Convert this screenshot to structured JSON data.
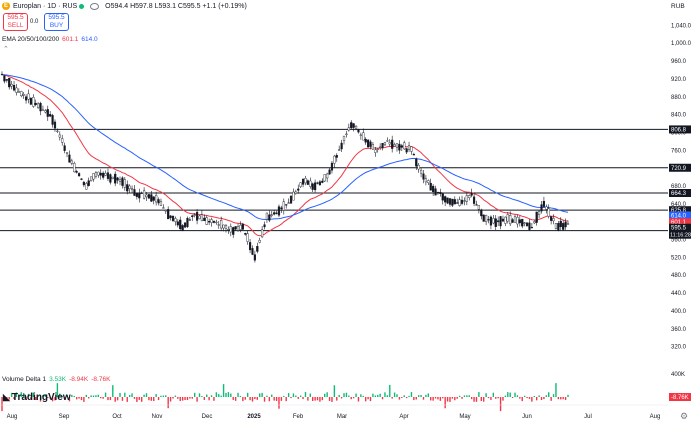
{
  "header": {
    "symbol": "Europlan · 1D · RUS",
    "logo_letter": "E",
    "ohlc": "O594.4  H597.8  L593.1  C595.5  +1.1 (+0.19%)",
    "sell_price": "595.5",
    "sell_label": "SELL",
    "spread": "0.0",
    "buy_price": "595.5",
    "buy_label": "BUY",
    "currency": "RUB"
  },
  "ema": {
    "label": "EMA 20/50/100/200",
    "value_fast": "601.1",
    "value_slow": "614.0"
  },
  "volume": {
    "label": "Volume Delta 1",
    "v1": "3.53K",
    "v2": "-8.94K",
    "v3": "-8.76K",
    "axis_label": "-8.76K",
    "axis_top": "400K"
  },
  "branding": {
    "name": "TradingView"
  },
  "axis": {
    "price_ticks": [
      "1,040.0",
      "1,000.0",
      "960.0",
      "920.0",
      "880.0",
      "840.0",
      "800.0",
      "760.0",
      "720.0",
      "680.0",
      "640.0",
      "600.0",
      "560.0",
      "520.0",
      "480.0",
      "440.0",
      "400.0",
      "360.0",
      "320.0"
    ],
    "time_ticks": [
      "Aug",
      "Sep",
      "Oct",
      "Nov",
      "Dec",
      "2025",
      "Feb",
      "Mar",
      "Apr",
      "May",
      "Jun",
      "Jul",
      "Aug"
    ]
  },
  "levels": [
    {
      "value": 806.8,
      "label": "806.8"
    },
    {
      "value": 720.9,
      "label": "720.9"
    },
    {
      "value": 664.3,
      "label": "664.3"
    },
    {
      "value": 625.8,
      "label": "625.8"
    },
    {
      "value": 580.0,
      "label": "580.0"
    }
  ],
  "price_tags": [
    {
      "value": 614.0,
      "label": "614.0",
      "color": "#2962ff"
    },
    {
      "value": 601.1,
      "label": "601.1",
      "color": "#f23645"
    },
    {
      "value": 595.5,
      "label": "595.5",
      "color": "#131722"
    }
  ],
  "countdown": "11:16:28",
  "colors": {
    "up": "#131722",
    "down": "#131722",
    "ema_fast": "#f23645",
    "ema_slow": "#2962ff",
    "vol_up": "#0dbc76",
    "vol_down": "#f23645"
  },
  "chart_data": {
    "type": "candlestick",
    "title": "Europlan · 1D · RUS",
    "ylim": [
      290,
      1070
    ],
    "close_series": [
      {
        "date": "2024-07-25",
        "close": 930
      },
      {
        "date": "2024-08-01",
        "close": 900
      },
      {
        "date": "2024-08-08",
        "close": 880
      },
      {
        "date": "2024-08-15",
        "close": 860
      },
      {
        "date": "2024-08-22",
        "close": 840
      },
      {
        "date": "2024-08-29",
        "close": 780
      },
      {
        "date": "2024-09-05",
        "close": 720
      },
      {
        "date": "2024-09-12",
        "close": 680
      },
      {
        "date": "2024-09-19",
        "close": 710
      },
      {
        "date": "2024-09-26",
        "close": 700
      },
      {
        "date": "2024-10-03",
        "close": 690
      },
      {
        "date": "2024-10-10",
        "close": 665
      },
      {
        "date": "2024-10-17",
        "close": 660
      },
      {
        "date": "2024-10-24",
        "close": 650
      },
      {
        "date": "2024-10-31",
        "close": 610
      },
      {
        "date": "2024-11-07",
        "close": 590
      },
      {
        "date": "2024-11-14",
        "close": 615
      },
      {
        "date": "2024-11-21",
        "close": 600
      },
      {
        "date": "2024-11-28",
        "close": 595
      },
      {
        "date": "2024-12-05",
        "close": 580
      },
      {
        "date": "2024-12-12",
        "close": 590
      },
      {
        "date": "2024-12-19",
        "close": 520
      },
      {
        "date": "2024-12-26",
        "close": 610
      },
      {
        "date": "2025-01-02",
        "close": 625
      },
      {
        "date": "2025-01-09",
        "close": 650
      },
      {
        "date": "2025-01-16",
        "close": 690
      },
      {
        "date": "2025-01-23",
        "close": 680
      },
      {
        "date": "2025-01-30",
        "close": 700
      },
      {
        "date": "2025-02-06",
        "close": 760
      },
      {
        "date": "2025-02-13",
        "close": 820
      },
      {
        "date": "2025-02-20",
        "close": 790
      },
      {
        "date": "2025-02-27",
        "close": 760
      },
      {
        "date": "2025-03-06",
        "close": 780
      },
      {
        "date": "2025-03-13",
        "close": 770
      },
      {
        "date": "2025-03-20",
        "close": 760
      },
      {
        "date": "2025-03-27",
        "close": 700
      },
      {
        "date": "2025-04-03",
        "close": 670
      },
      {
        "date": "2025-04-10",
        "close": 650
      },
      {
        "date": "2025-04-17",
        "close": 640
      },
      {
        "date": "2025-04-24",
        "close": 660
      },
      {
        "date": "2025-05-01",
        "close": 610
      },
      {
        "date": "2025-05-08",
        "close": 600
      },
      {
        "date": "2025-05-15",
        "close": 605
      },
      {
        "date": "2025-05-22",
        "close": 600
      },
      {
        "date": "2025-05-29",
        "close": 590
      },
      {
        "date": "2025-06-05",
        "close": 640
      },
      {
        "date": "2025-06-12",
        "close": 592
      },
      {
        "date": "2025-06-19",
        "close": 595.5
      }
    ]
  }
}
